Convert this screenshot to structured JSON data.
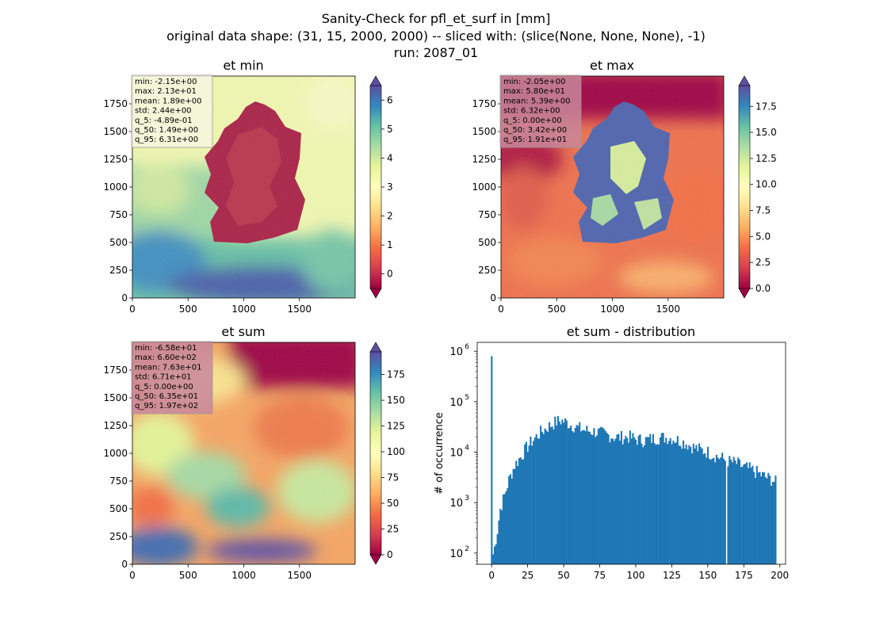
{
  "suptitle": {
    "line1": "Sanity-Check for pfl_et_surf in [mm]",
    "line2": "original data shape: (31, 15, 2000, 2000) -- sliced with: (slice(None, None, None), -1)",
    "line3": "run: 2087_01"
  },
  "colors": {
    "spectral_r": [
      "#9e0142",
      "#d53e4f",
      "#f46d43",
      "#fdae61",
      "#fee08b",
      "#ffffbf",
      "#e6f598",
      "#abdda4",
      "#66c2a5",
      "#3288bd",
      "#5e4fa2"
    ],
    "bar": "#1f77b4",
    "stats_box_light": "#f6f6e0",
    "stats_box_dark": "#c8879b"
  },
  "chart_data": [
    {
      "type": "heatmap",
      "title": "et min",
      "xlim": [
        0,
        2000
      ],
      "ylim": [
        0,
        2000
      ],
      "xticks": [
        "0",
        "500",
        "1000",
        "1500"
      ],
      "yticks": [
        "0",
        "250",
        "500",
        "750",
        "1000",
        "1250",
        "1500",
        "1750"
      ],
      "colorbar": {
        "vmin": -0.5,
        "vmax": 6.5,
        "ticks": [
          "0",
          "1",
          "2",
          "3",
          "4",
          "5",
          "6"
        ],
        "extend": "both"
      },
      "stats": [
        "min: -2.15e+00",
        "max: 2.13e+01",
        "mean: 1.89e+00",
        "std: 2.44e+00",
        "q_5: -4.89e-01",
        "q_50: 1.49e+00",
        "q_95: 6.31e+00"
      ],
      "stats_box": "light"
    },
    {
      "type": "heatmap",
      "title": "et max",
      "xlim": [
        0,
        2000
      ],
      "ylim": [
        0,
        2000
      ],
      "xticks": [
        "0",
        "500",
        "1000",
        "1500"
      ],
      "yticks": [
        "0",
        "250",
        "500",
        "750",
        "1000",
        "1250",
        "1500",
        "1750"
      ],
      "colorbar": {
        "vmin": 0,
        "vmax": 19.5,
        "ticks": [
          "0.0",
          "2.5",
          "5.0",
          "7.5",
          "10.0",
          "12.5",
          "15.0",
          "17.5"
        ],
        "extend": "both"
      },
      "stats": [
        "min: -2.05e+00",
        "max: 5.80e+01",
        "mean: 5.39e+00",
        "std: 6.32e+00",
        "q_5: 0.00e+00",
        "q_50: 3.42e+00",
        "q_95: 1.91e+01"
      ],
      "stats_box": "dark"
    },
    {
      "type": "heatmap",
      "title": "et sum",
      "xlim": [
        0,
        2000
      ],
      "ylim": [
        0,
        2000
      ],
      "xticks": [
        "0",
        "500",
        "1000",
        "1500"
      ],
      "yticks": [
        "0",
        "250",
        "500",
        "750",
        "1000",
        "1250",
        "1500",
        "1750"
      ],
      "colorbar": {
        "vmin": 0,
        "vmax": 197,
        "ticks": [
          "0",
          "25",
          "50",
          "75",
          "100",
          "125",
          "150",
          "175"
        ],
        "extend": "both"
      },
      "stats": [
        "min: -6.58e+01",
        "max: 6.60e+02",
        "mean: 7.63e+01",
        "std: 6.71e+01",
        "q_5: 0.00e+00",
        "q_50: 6.35e+01",
        "q_95: 1.97e+02"
      ],
      "stats_box": "dark"
    },
    {
      "type": "bar",
      "title": "et sum - distribution",
      "xlabel": "",
      "ylabel": "# of occurrence",
      "xlim": [
        -10,
        204
      ],
      "yscale": "log",
      "ylim": [
        60,
        1500000
      ],
      "xticks": [
        0,
        25,
        50,
        75,
        100,
        125,
        150,
        175,
        200
      ],
      "yticks": [
        {
          "value": 100,
          "base": "10",
          "exp": "2"
        },
        {
          "value": 1000,
          "base": "10",
          "exp": "3"
        },
        {
          "value": 10000,
          "base": "10",
          "exp": "4"
        },
        {
          "value": 100000,
          "base": "10",
          "exp": "5"
        },
        {
          "value": 1000000,
          "base": "10",
          "exp": "6"
        }
      ],
      "bin_width": 1,
      "spike": {
        "x": 0,
        "y": 800000
      },
      "envelope": [
        [
          1,
          95
        ],
        [
          2,
          130
        ],
        [
          4,
          280
        ],
        [
          6,
          750
        ],
        [
          9,
          1400
        ],
        [
          12,
          2800
        ],
        [
          16,
          5500
        ],
        [
          20,
          8000
        ],
        [
          25,
          13000
        ],
        [
          30,
          19000
        ],
        [
          35,
          26000
        ],
        [
          40,
          33000
        ],
        [
          45,
          40000
        ],
        [
          48,
          42000
        ],
        [
          50,
          41000
        ],
        [
          55,
          35000
        ],
        [
          60,
          30000
        ],
        [
          65,
          27000
        ],
        [
          70,
          26000
        ],
        [
          75,
          24000
        ],
        [
          80,
          22000
        ],
        [
          85,
          20000
        ],
        [
          90,
          19500
        ],
        [
          95,
          20000
        ],
        [
          100,
          18000
        ],
        [
          105,
          17000
        ],
        [
          110,
          18000
        ],
        [
          115,
          19000
        ],
        [
          120,
          19500
        ],
        [
          125,
          19000
        ],
        [
          130,
          17000
        ],
        [
          135,
          15000
        ],
        [
          140,
          12500
        ],
        [
          145,
          11000
        ],
        [
          150,
          10000
        ],
        [
          155,
          8500
        ],
        [
          160,
          7500
        ],
        [
          165,
          6500
        ],
        [
          170,
          6000
        ],
        [
          175,
          5000
        ],
        [
          180,
          4500
        ],
        [
          185,
          3800
        ],
        [
          190,
          3200
        ],
        [
          195,
          2800
        ],
        [
          197,
          2500
        ]
      ],
      "gap_x": 163
    }
  ]
}
